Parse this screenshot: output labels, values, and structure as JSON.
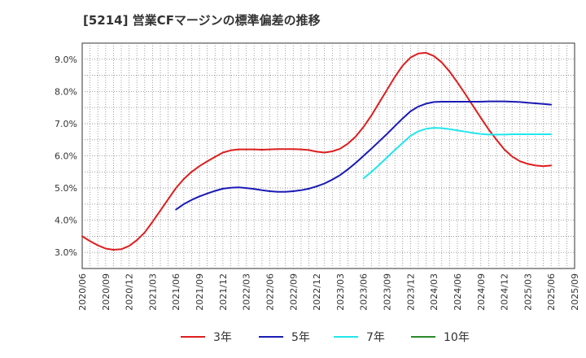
{
  "chart_data": {
    "type": "line",
    "title": "[5214]  営業CFマージンの標準偏差の推移",
    "xlabel": "",
    "ylabel": "",
    "x_ticks": [
      "2020/06",
      "2020/09",
      "2020/12",
      "2021/03",
      "2021/06",
      "2021/09",
      "2021/12",
      "2022/03",
      "2022/06",
      "2022/09",
      "2022/12",
      "2023/03",
      "2023/06",
      "2023/09",
      "2023/12",
      "2024/03",
      "2024/06",
      "2024/09",
      "2024/12",
      "2025/03",
      "2025/06",
      "2025/09"
    ],
    "y_ticks": [
      "3.0%",
      "4.0%",
      "5.0%",
      "6.0%",
      "7.0%",
      "8.0%",
      "9.0%"
    ],
    "ylim": [
      2.5,
      9.5
    ],
    "grid": true,
    "legend_position": "bottom",
    "series": [
      {
        "name": "3年",
        "color": "#dd1e1e",
        "x": [
          "2020/06",
          "2020/07",
          "2020/08",
          "2020/09",
          "2020/10",
          "2020/11",
          "2020/12",
          "2021/01",
          "2021/02",
          "2021/03",
          "2021/04",
          "2021/05",
          "2021/06",
          "2021/07",
          "2021/08",
          "2021/09",
          "2021/10",
          "2021/11",
          "2021/12",
          "2022/01",
          "2022/02",
          "2022/03",
          "2022/04",
          "2022/05",
          "2022/06",
          "2022/07",
          "2022/08",
          "2022/09",
          "2022/10",
          "2022/11",
          "2022/12",
          "2023/01",
          "2023/02",
          "2023/03",
          "2023/04",
          "2023/05",
          "2023/06",
          "2023/07",
          "2023/08",
          "2023/09",
          "2023/10",
          "2023/11",
          "2023/12",
          "2024/01",
          "2024/02",
          "2024/03",
          "2024/04",
          "2024/05",
          "2024/06",
          "2024/07",
          "2024/08",
          "2024/09",
          "2024/10",
          "2024/11",
          "2024/12",
          "2025/01",
          "2025/02",
          "2025/03",
          "2025/04",
          "2025/05",
          "2025/06"
        ],
        "values": [
          3.5,
          3.35,
          3.22,
          3.12,
          3.08,
          3.1,
          3.2,
          3.38,
          3.62,
          3.95,
          4.3,
          4.65,
          5.0,
          5.28,
          5.5,
          5.68,
          5.83,
          5.97,
          6.1,
          6.17,
          6.2,
          6.2,
          6.2,
          6.19,
          6.2,
          6.21,
          6.21,
          6.21,
          6.2,
          6.18,
          6.13,
          6.1,
          6.14,
          6.22,
          6.38,
          6.6,
          6.9,
          7.25,
          7.65,
          8.05,
          8.45,
          8.8,
          9.05,
          9.18,
          9.2,
          9.1,
          8.9,
          8.62,
          8.28,
          7.92,
          7.55,
          7.18,
          6.82,
          6.5,
          6.2,
          5.98,
          5.83,
          5.75,
          5.7,
          5.68,
          5.7
        ]
      },
      {
        "name": "5年",
        "color": "#1a1ab5",
        "x": [
          "2021/06",
          "2021/07",
          "2021/08",
          "2021/09",
          "2021/10",
          "2021/11",
          "2021/12",
          "2022/01",
          "2022/02",
          "2022/03",
          "2022/04",
          "2022/05",
          "2022/06",
          "2022/07",
          "2022/08",
          "2022/09",
          "2022/10",
          "2022/11",
          "2022/12",
          "2023/01",
          "2023/02",
          "2023/03",
          "2023/04",
          "2023/05",
          "2023/06",
          "2023/07",
          "2023/08",
          "2023/09",
          "2023/10",
          "2023/11",
          "2023/12",
          "2024/01",
          "2024/02",
          "2024/03",
          "2024/04",
          "2024/05",
          "2024/06",
          "2024/07",
          "2024/08",
          "2024/09",
          "2024/10",
          "2024/11",
          "2024/12",
          "2025/01",
          "2025/02",
          "2025/03",
          "2025/04",
          "2025/05",
          "2025/06"
        ],
        "values": [
          4.33,
          4.5,
          4.63,
          4.74,
          4.83,
          4.91,
          4.98,
          5.01,
          5.02,
          5.0,
          4.97,
          4.93,
          4.9,
          4.88,
          4.88,
          4.9,
          4.93,
          4.98,
          5.05,
          5.14,
          5.26,
          5.4,
          5.58,
          5.78,
          6.0,
          6.22,
          6.45,
          6.68,
          6.92,
          7.16,
          7.38,
          7.53,
          7.62,
          7.67,
          7.68,
          7.68,
          7.68,
          7.68,
          7.68,
          7.68,
          7.69,
          7.69,
          7.69,
          7.68,
          7.67,
          7.65,
          7.63,
          7.61,
          7.59
        ]
      },
      {
        "name": "7年",
        "color": "#22e6ec",
        "x": [
          "2023/06",
          "2023/07",
          "2023/08",
          "2023/09",
          "2023/10",
          "2023/11",
          "2023/12",
          "2024/01",
          "2024/02",
          "2024/03",
          "2024/04",
          "2024/05",
          "2024/06",
          "2024/07",
          "2024/08",
          "2024/09",
          "2024/10",
          "2024/11",
          "2024/12",
          "2025/01",
          "2025/02",
          "2025/03",
          "2025/04",
          "2025/05",
          "2025/06"
        ],
        "values": [
          5.3,
          5.5,
          5.72,
          5.95,
          6.18,
          6.4,
          6.62,
          6.76,
          6.84,
          6.87,
          6.86,
          6.83,
          6.79,
          6.75,
          6.71,
          6.68,
          6.66,
          6.66,
          6.66,
          6.67,
          6.67,
          6.67,
          6.67,
          6.67,
          6.67
        ]
      },
      {
        "name": "10年",
        "color": "#2a8a2a",
        "x": [],
        "values": []
      }
    ]
  }
}
